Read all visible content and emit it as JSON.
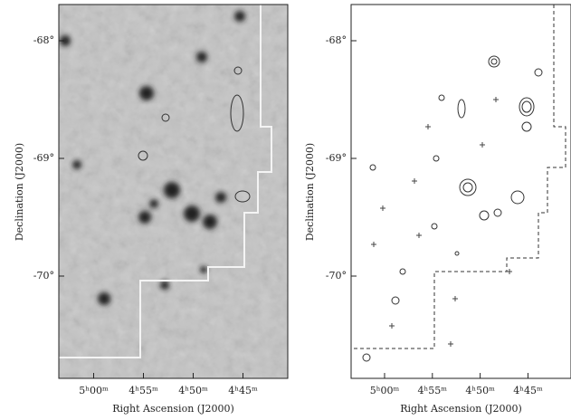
{
  "panels": [
    {
      "y_axis_label": "Declination (J2000)",
      "x_axis_label": "Right Ascension (J2000)",
      "y_ticks": [
        "-68°",
        "-69°",
        "-70°"
      ],
      "x_ticks": [
        "5ʰ00ᵐ",
        "4ʰ55ᵐ",
        "4ʰ50ᵐ",
        "4ʰ45ᵐ"
      ]
    },
    {
      "y_axis_label": "Declination (J2000)",
      "x_axis_label": "Right Ascension (J2000)",
      "y_ticks": [
        "-68°",
        "-69°",
        "-70°"
      ],
      "x_ticks": [
        "5ʰ00ᵐ",
        "4ʰ55ᵐ",
        "4ʰ50ᵐ",
        "4ʰ45ᵐ"
      ]
    }
  ]
}
